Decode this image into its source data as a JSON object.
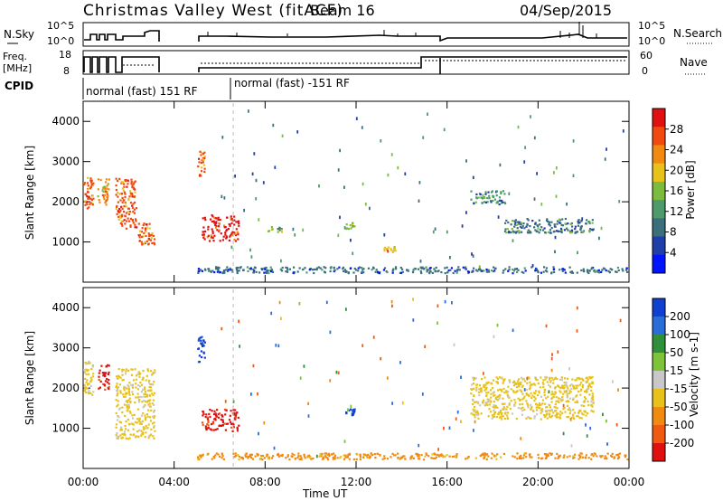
{
  "header": {
    "station": "Christmas Valley West (fitACF)",
    "beam": "Beam 16",
    "date": "04/Sep/2015"
  },
  "strip_labels": {
    "nsky": "N.Sky",
    "nsky_ticks": [
      "10^5",
      "10^0"
    ],
    "nsearch": "N.Search",
    "nsearch_ticks": [
      "10^5",
      "10^0"
    ],
    "freq_line1": "Freq.",
    "freq_line2": "[MHz]",
    "freq_ticks": [
      "18",
      "8"
    ],
    "nave": "Nave",
    "nave_ticks": [
      "60",
      "0"
    ],
    "cpid": "CPID"
  },
  "cpid_segments": [
    {
      "label": "normal (fast) 151 RF"
    },
    {
      "label": "normal (fast) -151 RF"
    }
  ],
  "colors": {
    "power_scale": [
      "#0014ff",
      "#1f3ea8",
      "#3b6f7c",
      "#4f9a6a",
      "#7dbb3f",
      "#e8c21a",
      "#f08a10",
      "#f04a10",
      "#e01010"
    ],
    "velocity_scale": [
      "#1040d0",
      "#2a6cd8",
      "#2f8f3a",
      "#7ec43a",
      "#c8c8c8",
      "#e8c21a",
      "#f08a10",
      "#f05a10",
      "#e01010"
    ]
  },
  "chart_data": [
    {
      "type": "heatmap",
      "panel": "power",
      "ylabel": "Slant Range [km]",
      "y_ticks": [
        "1000",
        "2000",
        "3000",
        "4000"
      ],
      "colorbar_label": "Power [dB]",
      "colorbar_ticks": [
        "4",
        "8",
        "12",
        "16",
        "20",
        "24",
        "28"
      ],
      "xlabel": "",
      "x_ticks": [],
      "features": [
        {
          "start_hour": 0.0,
          "end_hour": 0.5,
          "range_min_km": 1800,
          "range_max_km": 2700,
          "level": 26
        },
        {
          "start_hour": 0.6,
          "end_hour": 1.2,
          "range_min_km": 1900,
          "range_max_km": 2600,
          "level": 22
        },
        {
          "start_hour": 1.4,
          "end_hour": 2.4,
          "range_min_km": 1300,
          "range_max_km": 2600,
          "level": 24
        },
        {
          "start_hour": 2.4,
          "end_hour": 3.2,
          "range_min_km": 900,
          "range_max_km": 1500,
          "level": 26
        },
        {
          "start_hour": 5.0,
          "end_hour": 5.4,
          "range_min_km": 2600,
          "range_max_km": 3300,
          "level": 24
        },
        {
          "start_hour": 5.2,
          "end_hour": 6.9,
          "range_min_km": 1000,
          "range_max_km": 1700,
          "level": 28
        },
        {
          "start_hour": 8.0,
          "end_hour": 8.8,
          "range_min_km": 1200,
          "range_max_km": 1400,
          "level": 14
        },
        {
          "start_hour": 11.5,
          "end_hour": 12.0,
          "range_min_km": 1300,
          "range_max_km": 1500,
          "level": 14
        },
        {
          "start_hour": 13.2,
          "end_hour": 13.8,
          "range_min_km": 700,
          "range_max_km": 900,
          "level": 20
        },
        {
          "start_hour": 17.0,
          "end_hour": 18.6,
          "range_min_km": 1900,
          "range_max_km": 2300,
          "level": 12
        },
        {
          "start_hour": 18.5,
          "end_hour": 22.5,
          "range_min_km": 1200,
          "range_max_km": 1600,
          "level": 10
        },
        {
          "start_hour": 5.0,
          "end_hour": 24.0,
          "range_min_km": 200,
          "range_max_km": 400,
          "level": 8
        }
      ]
    },
    {
      "type": "heatmap",
      "panel": "velocity",
      "ylabel": "Slant Range [km]",
      "y_ticks": [
        "1000",
        "2000",
        "3000",
        "4000"
      ],
      "colorbar_label": "Velocity [m s-1]",
      "colorbar_ticks": [
        "200",
        "100",
        "50",
        "15",
        "-15",
        "-50",
        "-100",
        "-200"
      ],
      "xlabel": "Time UT",
      "x_ticks": [
        "00:00",
        "04:00",
        "08:00",
        "12:00",
        "16:00",
        "20:00",
        "00:00"
      ],
      "features": [
        {
          "start_hour": 0.0,
          "end_hour": 0.5,
          "range_min_km": 1800,
          "range_max_km": 2700,
          "level": -15
        },
        {
          "start_hour": 0.6,
          "end_hour": 1.2,
          "range_min_km": 1900,
          "range_max_km": 2600,
          "level": -200
        },
        {
          "start_hour": 1.4,
          "end_hour": 3.2,
          "range_min_km": 700,
          "range_max_km": 2500,
          "level": -15
        },
        {
          "start_hour": 5.0,
          "end_hour": 5.4,
          "range_min_km": 2600,
          "range_max_km": 3300,
          "level": 200
        },
        {
          "start_hour": 5.2,
          "end_hour": 6.9,
          "range_min_km": 900,
          "range_max_km": 1500,
          "level": -200
        },
        {
          "start_hour": 11.5,
          "end_hour": 12.0,
          "range_min_km": 1300,
          "range_max_km": 1500,
          "level": 200
        },
        {
          "start_hour": 17.0,
          "end_hour": 22.5,
          "range_min_km": 1200,
          "range_max_km": 2300,
          "level": -15
        },
        {
          "start_hour": 5.0,
          "end_hour": 24.0,
          "range_min_km": 200,
          "range_max_km": 400,
          "level": -50
        }
      ]
    }
  ]
}
